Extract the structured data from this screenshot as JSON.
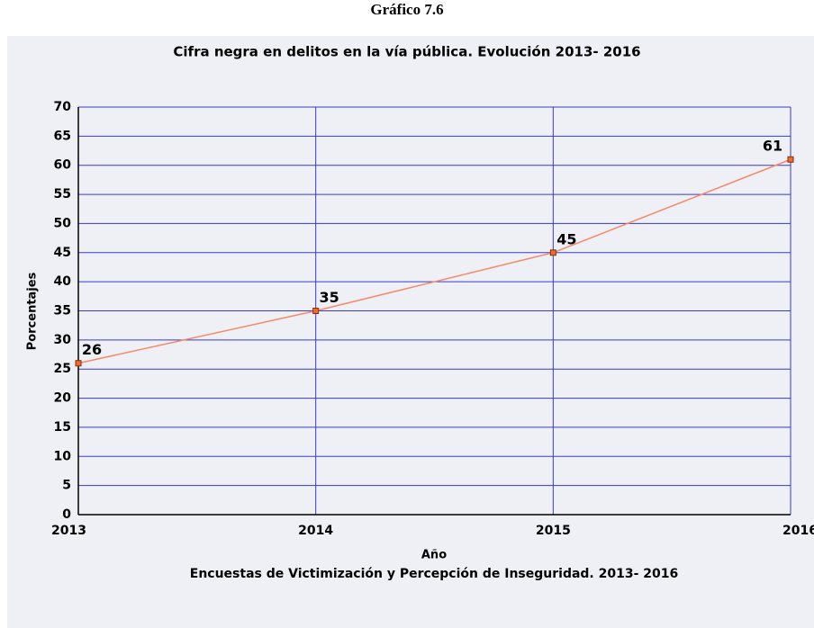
{
  "heading": "Gráfico 7.6",
  "chart_data": {
    "type": "line",
    "title": "Cifra negra en delitos en la vía pública. Evolución 2013- 2016",
    "x_label": "Año",
    "y_label": "Porcentajes",
    "note": "Encuestas de Victimización y Percepción de Inseguridad. 2013- 2016",
    "x": [
      2013,
      2014,
      2015,
      2016
    ],
    "series": [
      {
        "name": "Cifra negra",
        "color": "#f58a6a",
        "marker_color": "#e8702a",
        "values": [
          26,
          35,
          45,
          61
        ]
      }
    ],
    "xlim": [
      2013,
      2016
    ],
    "xticks": [
      2013,
      2014,
      2015,
      2016
    ],
    "ylim": [
      0,
      70
    ],
    "yticks": [
      0,
      5,
      10,
      15,
      20,
      25,
      30,
      35,
      40,
      45,
      50,
      55,
      60,
      65,
      70
    ],
    "grid": true,
    "grid_color": "#3a3ac8"
  }
}
